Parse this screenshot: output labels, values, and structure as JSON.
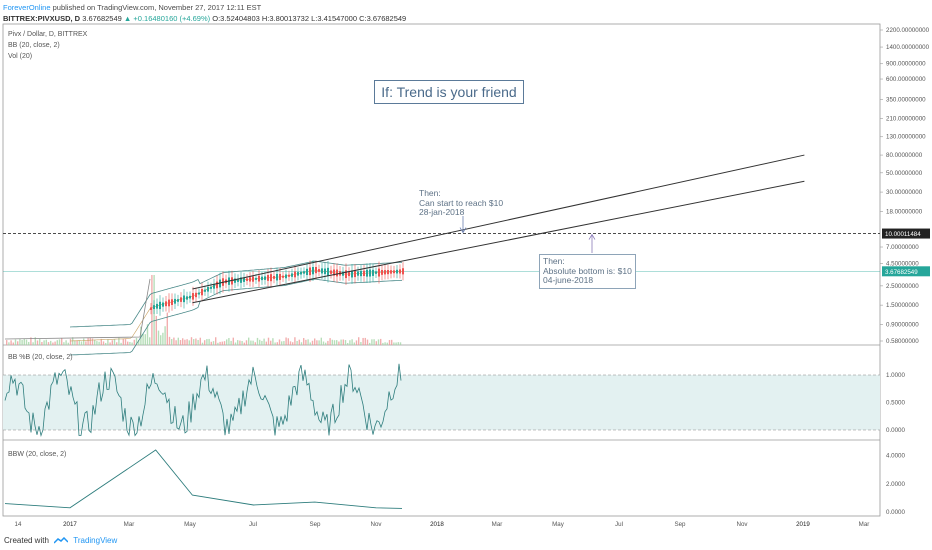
{
  "header": {
    "author": "ForeverOnline",
    "published": "published on TradingView.com, November 27, 2017 12:11 EST"
  },
  "ohlc": {
    "symbol": "BITTREX:PIVXUSD, D",
    "last": "3.67682549",
    "change": "▲ +0.16480160 (+4.69%)",
    "open": "O:3.52404803",
    "high": "H:3.80013732",
    "low": "L:3.41547000",
    "close": "C:3.67682549"
  },
  "main_legend": [
    "Pivx / Dollar, D, BITTREX",
    "BB (20, close, 2)",
    "Vol (20)"
  ],
  "annotation_title": "If: Trend is your friend",
  "note1": [
    "Then:",
    "Can start to reach $10",
    "28-jan-2018"
  ],
  "note2": [
    "Then:",
    "Absolute bottom is: $10",
    "04-june-2018"
  ],
  "footer": {
    "created": "Created with",
    "brand": "TradingView"
  },
  "colors": {
    "up": "#26a69a",
    "down": "#ef5350",
    "bb": "#4b8a8a",
    "trend": "#333333",
    "band": "#e3f1f1",
    "accent": "#2196f3"
  },
  "chart_data": [
    {
      "type": "candlestick",
      "title": "Pivx / Dollar, D, BITTREX",
      "scale": "log",
      "y_ticks": [
        "2200.00000000",
        "1400.00000000",
        "900.00000000",
        "600.00000000",
        "350.00000000",
        "210.00000000",
        "130.00000000",
        "80.00000000",
        "50.00000000",
        "30.00000000",
        "18.00000000",
        "10.00011484",
        "7.00000000",
        "4.50000000",
        "3.67682549",
        "2.50000000",
        "1.50000000",
        "0.90000000",
        "0.58000000"
      ],
      "x_ticks": [
        "14",
        "2017",
        "Mar",
        "May",
        "Jul",
        "Sep",
        "Nov",
        "2018",
        "Mar",
        "May",
        "Jul",
        "Sep",
        "Nov",
        "2019",
        "Mar"
      ],
      "price_line": 10.00011484,
      "last_price": 3.67682549,
      "approx_close": [
        {
          "date": "2017-01",
          "v": 0.58
        },
        {
          "date": "2017-03",
          "v": 0.62
        },
        {
          "date": "2017-03-20",
          "v": 1.4
        },
        {
          "date": "2017-05",
          "v": 1.9
        },
        {
          "date": "2017-06",
          "v": 2.8
        },
        {
          "date": "2017-07",
          "v": 3.0
        },
        {
          "date": "2017-08",
          "v": 3.2
        },
        {
          "date": "2017-09",
          "v": 3.8
        },
        {
          "date": "2017-10",
          "v": 3.4
        },
        {
          "date": "2017-11-27",
          "v": 3.68
        }
      ],
      "trendlines": [
        {
          "from": {
            "date": "2017-05",
            "v": 2.3
          },
          "to": {
            "date": "2019-01",
            "v": 80
          }
        },
        {
          "from": {
            "date": "2017-05",
            "v": 1.6
          },
          "to": {
            "date": "2019-01",
            "v": 40
          }
        }
      ]
    },
    {
      "type": "line",
      "title": "BB %B (20, close, 2)",
      "y_ticks": [
        "1.0000",
        "0.5000",
        "0.0000"
      ],
      "band": [
        0,
        1
      ]
    },
    {
      "type": "line",
      "title": "BBW (20, close, 2)",
      "y_ticks": [
        "4.0000",
        "2.0000",
        "0.0000"
      ],
      "approx": [
        {
          "date": "2017-01",
          "v": 0.3
        },
        {
          "date": "2017-03-25",
          "v": 4.4
        },
        {
          "date": "2017-05",
          "v": 1.2
        },
        {
          "date": "2017-07",
          "v": 0.5
        },
        {
          "date": "2017-09",
          "v": 0.7
        },
        {
          "date": "2017-11",
          "v": 0.3
        }
      ]
    }
  ]
}
